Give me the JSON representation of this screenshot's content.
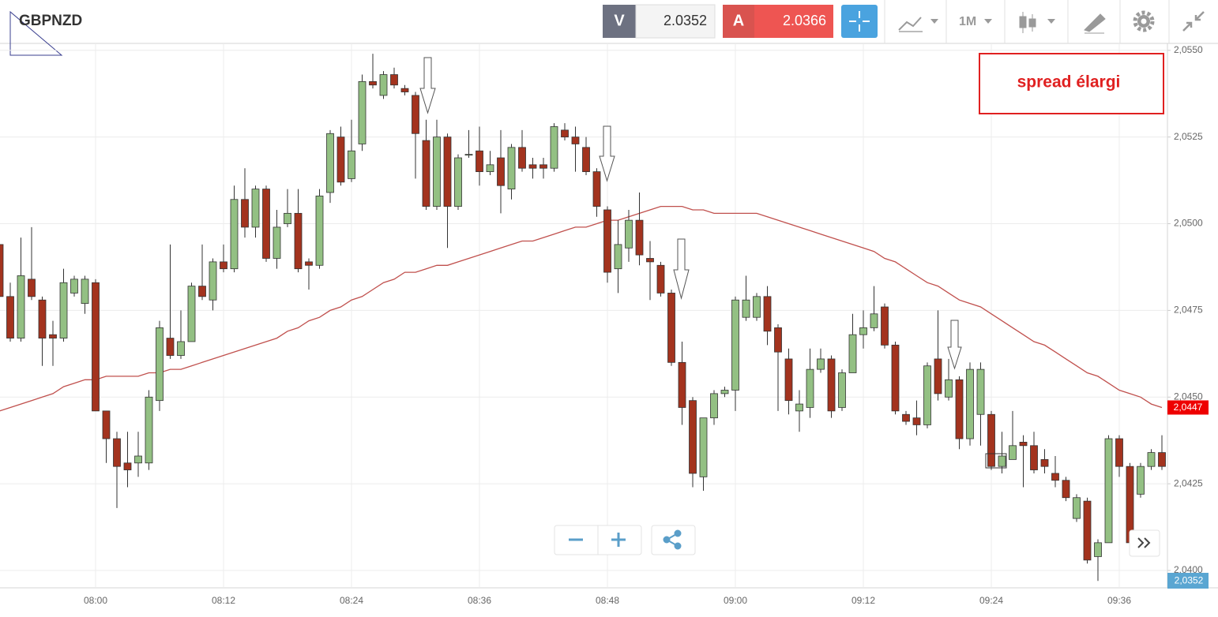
{
  "toolbar": {
    "symbol": "GBPNZD",
    "sell_label": "V",
    "sell_price": "2.0352",
    "buy_label": "A",
    "buy_price": "2.0366",
    "timeframe": "1M"
  },
  "chart_data": {
    "type": "candlestick",
    "annotation": "spread élargi",
    "up_color": "#93c083",
    "down_color": "#a3331e",
    "ma_color": "#c0504d",
    "grid": true,
    "ylim": [
      2.0395,
      2.0552
    ],
    "yticks": [
      {
        "value": 2.04,
        "label": "2,0400"
      },
      {
        "value": 2.0425,
        "label": "2,0425"
      },
      {
        "value": 2.045,
        "label": "2,0450"
      },
      {
        "value": 2.0475,
        "label": "2,0475"
      },
      {
        "value": 2.05,
        "label": "2,0500"
      },
      {
        "value": 2.0525,
        "label": "2,0525"
      },
      {
        "value": 2.055,
        "label": "2,0550"
      }
    ],
    "price_tag": {
      "value": 2.0447,
      "label": "2,0447",
      "color": "#ee0000"
    },
    "bid_tag": "2,0352",
    "categories": [
      null,
      null,
      null,
      null,
      null,
      null,
      null,
      null,
      null,
      "08:00",
      null,
      null,
      null,
      null,
      null,
      null,
      null,
      null,
      null,
      null,
      null,
      "08:12",
      null,
      null,
      null,
      null,
      null,
      null,
      null,
      null,
      null,
      null,
      null,
      "08:24",
      null,
      null,
      null,
      null,
      null,
      null,
      null,
      null,
      null,
      null,
      null,
      "08:36",
      null,
      null,
      null,
      null,
      null,
      null,
      null,
      null,
      null,
      null,
      null,
      "08:48",
      null,
      null,
      null,
      null,
      null,
      null,
      null,
      null,
      null,
      null,
      null,
      "09:00",
      null,
      null,
      null,
      null,
      null,
      null,
      null,
      null,
      null,
      null,
      null,
      "09:12",
      null,
      null,
      null,
      null,
      null,
      null,
      null,
      null,
      null,
      null,
      null,
      "09:24",
      null,
      null,
      null,
      null,
      null,
      null,
      null,
      null,
      null,
      null,
      null,
      "09:36",
      null,
      null,
      null,
      null
    ],
    "candles": [
      [
        2.0494,
        2.0496,
        2.0474,
        2.0479
      ],
      [
        2.0479,
        2.0483,
        2.0466,
        2.0467
      ],
      [
        2.0467,
        2.0496,
        2.0466,
        2.0485
      ],
      [
        2.0484,
        2.0499,
        2.0478,
        2.0479
      ],
      [
        2.0478,
        2.0479,
        2.0459,
        2.0467
      ],
      [
        2.0468,
        2.0472,
        2.0459,
        2.0467
      ],
      [
        2.0467,
        2.0487,
        2.0466,
        2.0483
      ],
      [
        2.048,
        2.0485,
        2.0479,
        2.0484
      ],
      [
        2.0477,
        2.0485,
        2.0474,
        2.0484
      ],
      [
        2.0483,
        2.0484,
        2.0446,
        2.0446
      ],
      [
        2.0446,
        2.0446,
        2.0431,
        2.0438
      ],
      [
        2.0438,
        2.044,
        2.0418,
        2.043
      ],
      [
        2.0431,
        2.044,
        2.0424,
        2.0429
      ],
      [
        2.0431,
        2.044,
        2.0427,
        2.0433
      ],
      [
        2.0431,
        2.0452,
        2.0429,
        2.045
      ],
      [
        2.0449,
        2.0472,
        2.0446,
        2.047
      ],
      [
        2.0467,
        2.0494,
        2.0461,
        2.0462
      ],
      [
        2.0462,
        2.0475,
        2.0461,
        2.0466
      ],
      [
        2.0466,
        2.0483,
        2.0466,
        2.0482
      ],
      [
        2.0482,
        2.0494,
        2.0478,
        2.0479
      ],
      [
        2.0478,
        2.049,
        2.0475,
        2.0489
      ],
      [
        2.0489,
        2.0494,
        2.0486,
        2.0487
      ],
      [
        2.0487,
        2.0511,
        2.0486,
        2.0507
      ],
      [
        2.0507,
        2.0516,
        2.0496,
        2.0499
      ],
      [
        2.0499,
        2.0511,
        2.0496,
        2.051
      ],
      [
        2.051,
        2.0511,
        2.0489,
        2.049
      ],
      [
        2.049,
        2.0504,
        2.0487,
        2.0499
      ],
      [
        2.05,
        2.051,
        2.0499,
        2.0503
      ],
      [
        2.0503,
        2.051,
        2.0486,
        2.0487
      ],
      [
        2.0489,
        2.049,
        2.0481,
        2.0488
      ],
      [
        2.0488,
        2.051,
        2.0487,
        2.0508
      ],
      [
        2.0509,
        2.0527,
        2.0506,
        2.0526
      ],
      [
        2.0525,
        2.0528,
        2.0511,
        2.0512
      ],
      [
        2.0513,
        2.053,
        2.0512,
        2.0521
      ],
      [
        2.0523,
        2.0543,
        2.0521,
        2.0541
      ],
      [
        2.0541,
        2.0549,
        2.0539,
        2.054
      ],
      [
        2.0537,
        2.0544,
        2.0536,
        2.0543
      ],
      [
        2.0543,
        2.0545,
        2.0539,
        2.054
      ],
      [
        2.0539,
        2.054,
        2.0537,
        2.0538
      ],
      [
        2.0537,
        2.0538,
        2.0513,
        2.0526
      ],
      [
        2.0524,
        2.053,
        2.0504,
        2.0505
      ],
      [
        2.0505,
        2.053,
        2.0504,
        2.0525
      ],
      [
        2.0525,
        2.0526,
        2.0493,
        2.0505
      ],
      [
        2.0505,
        2.052,
        2.0504,
        2.0519
      ],
      [
        2.052,
        2.0527,
        2.0519,
        2.052
      ],
      [
        2.0521,
        2.0528,
        2.0511,
        2.0515
      ],
      [
        2.0515,
        2.0521,
        2.0514,
        2.0517
      ],
      [
        2.0519,
        2.0527,
        2.0503,
        2.0511
      ],
      [
        2.051,
        2.0523,
        2.0507,
        2.0522
      ],
      [
        2.0522,
        2.0527,
        2.0515,
        2.0516
      ],
      [
        2.0517,
        2.0519,
        2.0513,
        2.0516
      ],
      [
        2.0517,
        2.0519,
        2.0513,
        2.0516
      ],
      [
        2.0516,
        2.0529,
        2.0515,
        2.0528
      ],
      [
        2.0527,
        2.0529,
        2.0524,
        2.0525
      ],
      [
        2.0525,
        2.0528,
        2.0515,
        2.0523
      ],
      [
        2.0522,
        2.0525,
        2.0514,
        2.0515
      ],
      [
        2.0515,
        2.0516,
        2.0502,
        2.0505
      ],
      [
        2.0504,
        2.0505,
        2.0483,
        2.0486
      ],
      [
        2.0487,
        2.0501,
        2.048,
        2.0494
      ],
      [
        2.0493,
        2.0504,
        2.0489,
        2.0501
      ],
      [
        2.0501,
        2.0509,
        2.0488,
        2.0491
      ],
      [
        2.049,
        2.0495,
        2.0478,
        2.0489
      ],
      [
        2.0488,
        2.0489,
        2.0479,
        2.048
      ],
      [
        2.048,
        2.0481,
        2.0459,
        2.046
      ],
      [
        2.046,
        2.0466,
        2.0442,
        2.0447
      ],
      [
        2.0449,
        2.045,
        2.0424,
        2.0428
      ],
      [
        2.0427,
        2.0444,
        2.0423,
        2.0444
      ],
      [
        2.0444,
        2.0452,
        2.0442,
        2.0451
      ],
      [
        2.0451,
        2.0453,
        2.045,
        2.0452
      ],
      [
        2.0452,
        2.0479,
        2.0446,
        2.0478
      ],
      [
        2.0473,
        2.0485,
        2.0472,
        2.0478
      ],
      [
        2.0473,
        2.048,
        2.0472,
        2.0479
      ],
      [
        2.0479,
        2.0482,
        2.0465,
        2.0469
      ],
      [
        2.047,
        2.0471,
        2.0446,
        2.0463
      ],
      [
        2.0461,
        2.0464,
        2.0445,
        2.0449
      ],
      [
        2.0446,
        2.0452,
        2.044,
        2.0448
      ],
      [
        2.0447,
        2.0464,
        2.0444,
        2.0458
      ],
      [
        2.0458,
        2.0464,
        2.0457,
        2.0461
      ],
      [
        2.0461,
        2.0462,
        2.0444,
        2.0446
      ],
      [
        2.0447,
        2.0458,
        2.0446,
        2.0457
      ],
      [
        2.0457,
        2.0474,
        2.0457,
        2.0468
      ],
      [
        2.0468,
        2.0475,
        2.0464,
        2.047
      ],
      [
        2.047,
        2.0482,
        2.0469,
        2.0474
      ],
      [
        2.0476,
        2.0477,
        2.0464,
        2.0465
      ],
      [
        2.0465,
        2.0466,
        2.0445,
        2.0446
      ],
      [
        2.0445,
        2.0446,
        2.0442,
        2.0443
      ],
      [
        2.0444,
        2.0449,
        2.0439,
        2.0442
      ],
      [
        2.0442,
        2.046,
        2.0441,
        2.0459
      ],
      [
        2.0461,
        2.0475,
        2.0449,
        2.0451
      ],
      [
        2.045,
        2.0461,
        2.0449,
        2.0455
      ],
      [
        2.0455,
        2.0456,
        2.0435,
        2.0438
      ],
      [
        2.0438,
        2.046,
        2.0436,
        2.0458
      ],
      [
        2.0445,
        2.046,
        2.0436,
        2.0458
      ],
      [
        2.0445,
        2.0446,
        2.0429,
        2.043
      ],
      [
        2.043,
        2.044,
        2.0428,
        2.0433
      ],
      [
        2.0432,
        2.0446,
        2.0432,
        2.0436
      ],
      [
        2.0437,
        2.0439,
        2.0424,
        2.0436
      ],
      [
        2.0436,
        2.044,
        2.0428,
        2.0429
      ],
      [
        2.0432,
        2.0435,
        2.0428,
        2.043
      ],
      [
        2.0428,
        2.0433,
        2.0424,
        2.0426
      ],
      [
        2.0426,
        2.0427,
        2.042,
        2.0421
      ],
      [
        2.0415,
        2.0422,
        2.0414,
        2.0421
      ],
      [
        2.042,
        2.0421,
        2.0402,
        2.0403
      ],
      [
        2.0404,
        2.0409,
        2.0397,
        2.0408
      ],
      [
        2.0408,
        2.0439,
        2.0408,
        2.0438
      ],
      [
        2.0438,
        2.0439,
        2.0427,
        2.043
      ],
      [
        2.043,
        2.0431,
        2.0405,
        2.0408
      ],
      [
        2.0422,
        2.0431,
        2.0421,
        2.043
      ],
      [
        2.043,
        2.0435,
        2.0429,
        2.0434
      ],
      [
        2.0434,
        2.0439,
        2.0429,
        2.043
      ]
    ],
    "ma": [
      2.0446,
      2.0447,
      2.0448,
      2.0449,
      2.045,
      2.0451,
      2.0453,
      2.0454,
      2.0455,
      2.0455,
      2.0456,
      2.0456,
      2.0456,
      2.0456,
      2.0457,
      2.0457,
      2.0458,
      2.0458,
      2.0459,
      2.046,
      2.0461,
      2.0462,
      2.0463,
      2.0464,
      2.0465,
      2.0466,
      2.0467,
      2.0469,
      2.047,
      2.0472,
      2.0473,
      2.0475,
      2.0476,
      2.0478,
      2.0479,
      2.0481,
      2.0483,
      2.0484,
      2.0486,
      2.0486,
      2.0487,
      2.0488,
      2.0488,
      2.0489,
      2.049,
      2.0491,
      2.0492,
      2.0493,
      2.0494,
      2.0495,
      2.0495,
      2.0496,
      2.0497,
      2.0498,
      2.0499,
      2.0499,
      2.05,
      2.0501,
      2.0501,
      2.0502,
      2.0503,
      2.0504,
      2.0505,
      2.0505,
      2.0505,
      2.0504,
      2.0504,
      2.0503,
      2.0503,
      2.0503,
      2.0503,
      2.0503,
      2.0502,
      2.0501,
      2.05,
      2.0499,
      2.0498,
      2.0497,
      2.0496,
      2.0495,
      2.0494,
      2.0493,
      2.0492,
      2.049,
      2.0489,
      2.0487,
      2.0485,
      2.0483,
      2.0482,
      2.048,
      2.0478,
      2.0477,
      2.0476,
      2.0474,
      2.0472,
      2.047,
      2.0468,
      2.0466,
      2.0465,
      2.0463,
      2.0461,
      2.0459,
      2.0457,
      2.0456,
      2.0454,
      2.0452,
      2.0451,
      2.045,
      2.0448,
      2.0447
    ]
  }
}
